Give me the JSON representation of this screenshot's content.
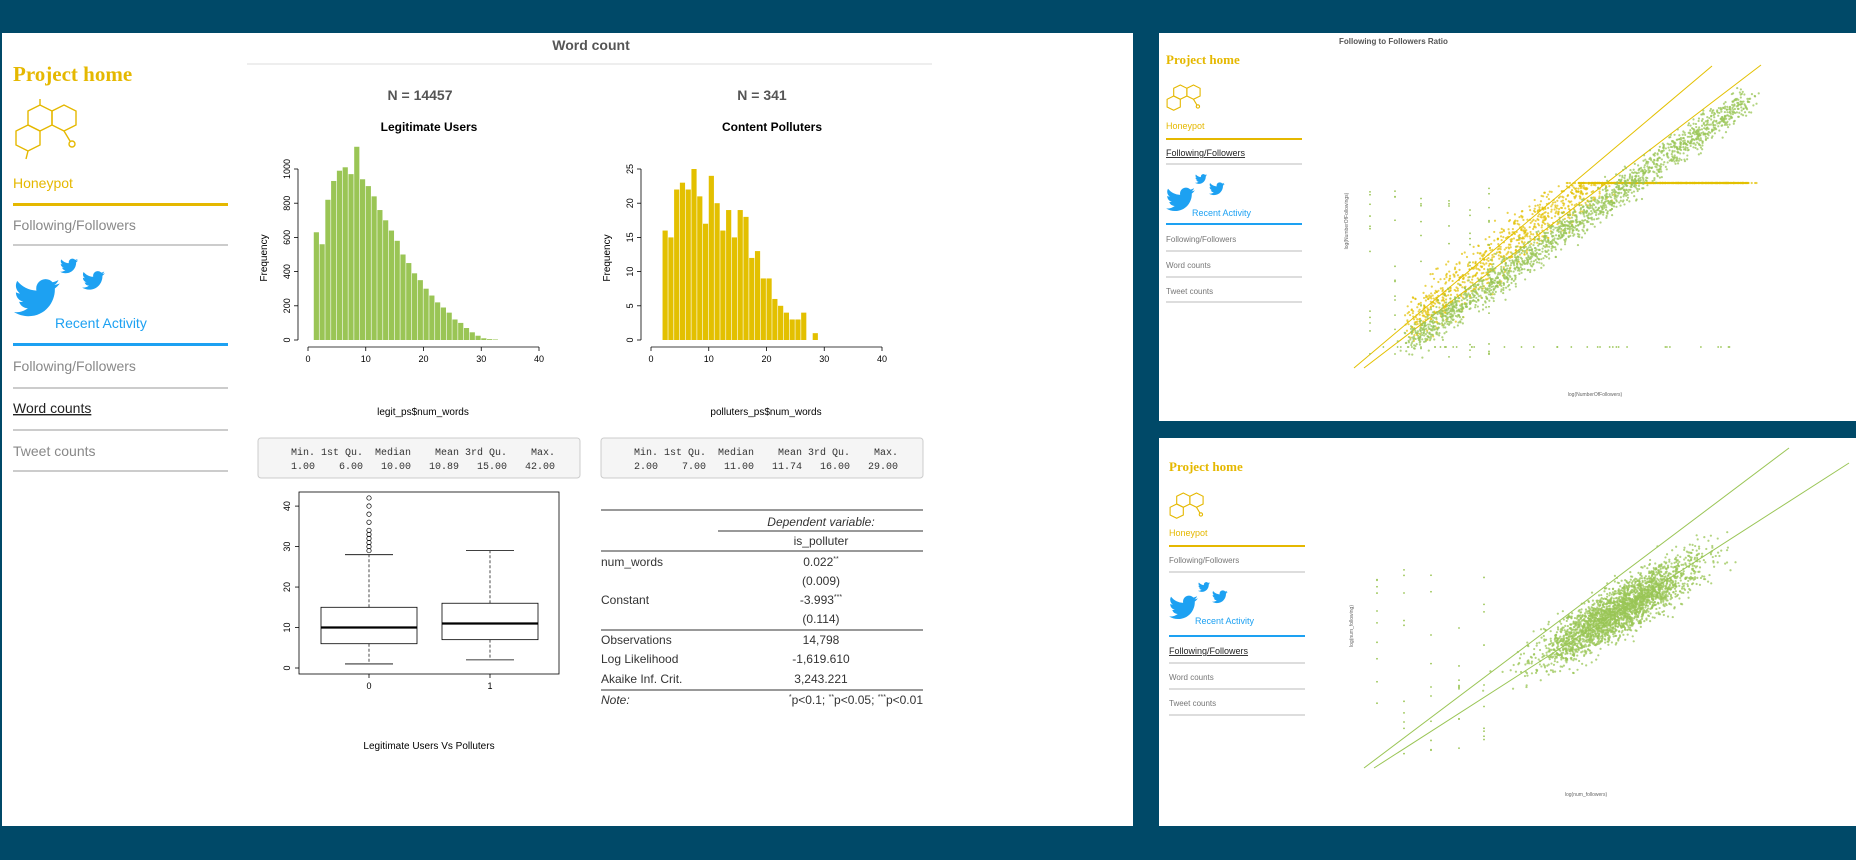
{
  "colors": {
    "gold": "#e5b800",
    "twitter": "#1da1f2",
    "green": "#9ac555",
    "yellow": "#e3c000",
    "bg": "#004968"
  },
  "sidebar": {
    "project_home": "Project home",
    "honeypot": "Honeypot",
    "recent_activity": "Recent Activity",
    "section1": [
      "Following/Followers"
    ],
    "section2": [
      "Following/Followers",
      "Word counts",
      "Tweet counts"
    ],
    "icons": {
      "logo": "molecule-icon",
      "bird": "twitter-bird-icon"
    }
  },
  "main": {
    "title": "Word count",
    "legit": {
      "n": "N = 14457",
      "summary_header": "   Min. 1st Qu.  Median    Mean 3rd Qu.    Max.",
      "summary_values": "   1.00    6.00   10.00   10.89   15.00   42.00"
    },
    "polluters": {
      "n": "N = 341",
      "summary_header": "   Min. 1st Qu.  Median    Mean 3rd Qu.    Max.",
      "summary_values": "   2.00    7.00   11.00   11.74   16.00   29.00"
    },
    "regression": {
      "dep_label": "Dependent variable:",
      "dep_var": "is_polluter",
      "rows": [
        {
          "label": "num_words",
          "value": "0.022",
          "sup": "**"
        },
        {
          "label": "",
          "value": "(0.009)",
          "sup": ""
        },
        {
          "label": "Constant",
          "value": "-3.993",
          "sup": "***"
        },
        {
          "label": "",
          "value": "(0.114)",
          "sup": ""
        }
      ],
      "stats": [
        {
          "label": "Observations",
          "value": "14,798"
        },
        {
          "label": "Log Likelihood",
          "value": "-1,619.610"
        },
        {
          "label": "Akaike Inf. Crit.",
          "value": "3,243.221"
        }
      ],
      "note_label": "Note:",
      "note_parts": [
        {
          "s": "*",
          "t": "p<0.1; "
        },
        {
          "s": "**",
          "t": "p<0.05; "
        },
        {
          "s": "***",
          "t": "p<0.01"
        }
      ]
    }
  },
  "chart_data": [
    {
      "type": "bar",
      "title": "Legitimate Users",
      "xlabel": "legit_ps$num_words",
      "ylabel": "Frequency",
      "bin_width": 1,
      "x_start": 1,
      "xlim": [
        0,
        40
      ],
      "ylim": [
        0,
        1000
      ],
      "x_ticks": [
        0,
        10,
        20,
        30,
        40
      ],
      "y_ticks": [
        0,
        200,
        400,
        600,
        800,
        1000
      ],
      "values": [
        630,
        560,
        820,
        930,
        990,
        1010,
        970,
        1130,
        940,
        900,
        840,
        760,
        700,
        640,
        580,
        500,
        450,
        390,
        350,
        300,
        260,
        220,
        190,
        160,
        120,
        100,
        70,
        45,
        25,
        10,
        5,
        3
      ]
    },
    {
      "type": "bar",
      "title": "Content Polluters",
      "xlabel": "polluters_ps$num_words",
      "ylabel": "Frequency",
      "bin_width": 1,
      "x_start": 2,
      "xlim": [
        0,
        40
      ],
      "ylim": [
        0,
        25
      ],
      "x_ticks": [
        0,
        10,
        20,
        30,
        40
      ],
      "y_ticks": [
        0,
        5,
        10,
        15,
        20,
        25
      ],
      "values": [
        16,
        15,
        22,
        23,
        22,
        25,
        21,
        17,
        24,
        20,
        16,
        19,
        15,
        19,
        18,
        12,
        13,
        9,
        9,
        6,
        5,
        4,
        3,
        3,
        4,
        0,
        1
      ]
    },
    {
      "type": "box",
      "xlabel": "Legitimate Users Vs Polluters",
      "ylim": [
        0,
        42
      ],
      "x_ticks": [
        "0",
        "1"
      ],
      "y_ticks": [
        0,
        10,
        20,
        30,
        40
      ],
      "boxes": [
        {
          "name": "0",
          "min": 1,
          "q1": 6,
          "median": 10,
          "q3": 15,
          "whisker_high": 28,
          "outliers": [
            29,
            30,
            31,
            32,
            33,
            34,
            36,
            38,
            40,
            42
          ]
        },
        {
          "name": "1",
          "min": 2,
          "q1": 7,
          "median": 11,
          "q3": 16,
          "whisker_high": 29,
          "outliers": []
        }
      ]
    },
    {
      "type": "scatter",
      "title": "Following to Followers Ratio",
      "xlabel": "log(NumberOfFollowers)",
      "ylabel": "log(NumberOfFollowings)",
      "series": [
        {
          "color": "#e3c000"
        },
        {
          "color": "#9ac555"
        }
      ]
    },
    {
      "type": "scatter",
      "xlabel": "log(num_followers)",
      "ylabel": "log(num_following)",
      "series": [
        {
          "color": "#9ac555"
        }
      ]
    }
  ]
}
